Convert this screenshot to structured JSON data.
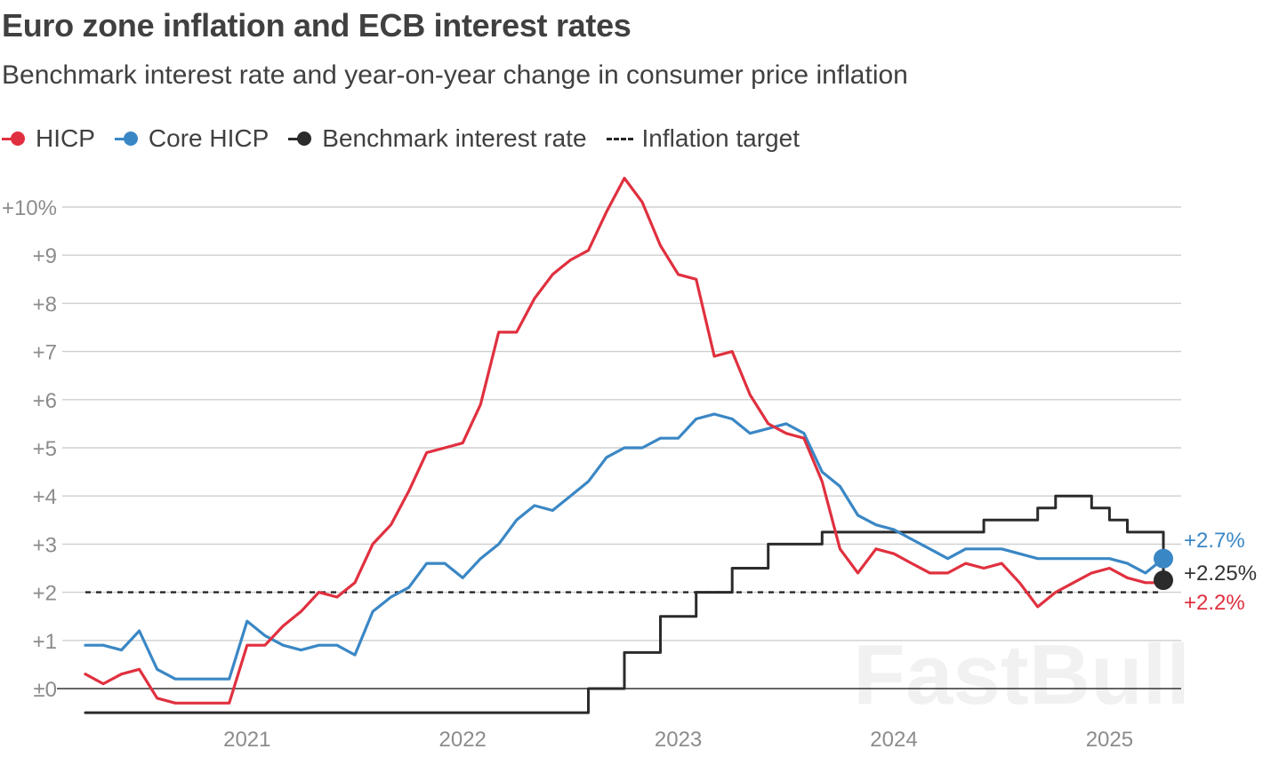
{
  "header": {
    "title": "Euro zone inflation and ECB interest rates",
    "subtitle": "Benchmark interest rate and year-on-year change in consumer price inflation"
  },
  "legend": [
    {
      "label": "HICP",
      "color": "#e0303f",
      "kind": "dot"
    },
    {
      "label": "Core HICP",
      "color": "#3a87c5",
      "kind": "dot"
    },
    {
      "label": "Benchmark interest rate",
      "color": "#2b2b2b",
      "kind": "dot"
    },
    {
      "label": "Inflation target",
      "color": "#262626",
      "kind": "dash"
    }
  ],
  "watermark": "FastBull",
  "chart_data": {
    "type": "line",
    "title": "Euro zone inflation and ECB interest rates",
    "subtitle": "Benchmark interest rate and year-on-year change in consumer price inflation",
    "xlabel": "",
    "ylabel": "",
    "x_range": [
      2020.25,
      2025.25
    ],
    "ylim": [
      -0.5,
      10.6
    ],
    "y_ticks": [
      {
        "value": 0,
        "label": "±0"
      },
      {
        "value": 1,
        "label": "+1"
      },
      {
        "value": 2,
        "label": "+2"
      },
      {
        "value": 3,
        "label": "+3"
      },
      {
        "value": 4,
        "label": "+4"
      },
      {
        "value": 5,
        "label": "+5"
      },
      {
        "value": 6,
        "label": "+6"
      },
      {
        "value": 7,
        "label": "+7"
      },
      {
        "value": 8,
        "label": "+8"
      },
      {
        "value": 9,
        "label": "+9"
      },
      {
        "value": 10,
        "label": "+10%"
      }
    ],
    "x_ticks": [
      {
        "value": 2021,
        "label": "2021"
      },
      {
        "value": 2022,
        "label": "2022"
      },
      {
        "value": 2023,
        "label": "2023"
      },
      {
        "value": 2024,
        "label": "2024"
      },
      {
        "value": 2025,
        "label": "2025"
      }
    ],
    "grid": true,
    "legend_position": "top-left",
    "inflation_target": {
      "label": "Inflation target",
      "value": 2.0
    },
    "series": [
      {
        "name": "HICP",
        "color": "#e0303f",
        "step": false,
        "end_label": "+2.2%",
        "x": [
          2020.25,
          2020.333,
          2020.417,
          2020.5,
          2020.583,
          2020.667,
          2020.75,
          2020.833,
          2020.917,
          2021.0,
          2021.083,
          2021.167,
          2021.25,
          2021.333,
          2021.417,
          2021.5,
          2021.583,
          2021.667,
          2021.75,
          2021.833,
          2021.917,
          2022.0,
          2022.083,
          2022.167,
          2022.25,
          2022.333,
          2022.417,
          2022.5,
          2022.583,
          2022.667,
          2022.75,
          2022.833,
          2022.917,
          2023.0,
          2023.083,
          2023.167,
          2023.25,
          2023.333,
          2023.417,
          2023.5,
          2023.583,
          2023.667,
          2023.75,
          2023.833,
          2023.917,
          2024.0,
          2024.083,
          2024.167,
          2024.25,
          2024.333,
          2024.417,
          2024.5,
          2024.583,
          2024.667,
          2024.75,
          2024.833,
          2024.917,
          2025.0,
          2025.083,
          2025.167,
          2025.25
        ],
        "values": [
          0.3,
          0.1,
          0.3,
          0.4,
          -0.2,
          -0.3,
          -0.3,
          -0.3,
          -0.3,
          0.9,
          0.9,
          1.3,
          1.6,
          2.0,
          1.9,
          2.2,
          3.0,
          3.4,
          4.1,
          4.9,
          5.0,
          5.1,
          5.9,
          7.4,
          7.4,
          8.1,
          8.6,
          8.9,
          9.1,
          9.9,
          10.6,
          10.1,
          9.2,
          8.6,
          8.5,
          6.9,
          7.0,
          6.1,
          5.5,
          5.3,
          5.2,
          4.3,
          2.9,
          2.4,
          2.9,
          2.8,
          2.6,
          2.4,
          2.4,
          2.6,
          2.5,
          2.6,
          2.2,
          1.7,
          2.0,
          2.2,
          2.4,
          2.5,
          2.3,
          2.2,
          2.2
        ]
      },
      {
        "name": "Core HICP",
        "color": "#3a87c5",
        "step": false,
        "end_label": "+2.7%",
        "x": [
          2020.25,
          2020.333,
          2020.417,
          2020.5,
          2020.583,
          2020.667,
          2020.75,
          2020.833,
          2020.917,
          2021.0,
          2021.083,
          2021.167,
          2021.25,
          2021.333,
          2021.417,
          2021.5,
          2021.583,
          2021.667,
          2021.75,
          2021.833,
          2021.917,
          2022.0,
          2022.083,
          2022.167,
          2022.25,
          2022.333,
          2022.417,
          2022.5,
          2022.583,
          2022.667,
          2022.75,
          2022.833,
          2022.917,
          2023.0,
          2023.083,
          2023.167,
          2023.25,
          2023.333,
          2023.417,
          2023.5,
          2023.583,
          2023.667,
          2023.75,
          2023.833,
          2023.917,
          2024.0,
          2024.083,
          2024.167,
          2024.25,
          2024.333,
          2024.417,
          2024.5,
          2024.583,
          2024.667,
          2024.75,
          2024.833,
          2024.917,
          2025.0,
          2025.083,
          2025.167,
          2025.25
        ],
        "values": [
          0.9,
          0.9,
          0.8,
          1.2,
          0.4,
          0.2,
          0.2,
          0.2,
          0.2,
          1.4,
          1.1,
          0.9,
          0.8,
          0.9,
          0.9,
          0.7,
          1.6,
          1.9,
          2.1,
          2.6,
          2.6,
          2.3,
          2.7,
          3.0,
          3.5,
          3.8,
          3.7,
          4.0,
          4.3,
          4.8,
          5.0,
          5.0,
          5.2,
          5.2,
          5.6,
          5.7,
          5.6,
          5.3,
          5.4,
          5.5,
          5.3,
          4.5,
          4.2,
          3.6,
          3.4,
          3.3,
          3.1,
          2.9,
          2.7,
          2.9,
          2.9,
          2.9,
          2.8,
          2.7,
          2.7,
          2.7,
          2.7,
          2.7,
          2.6,
          2.4,
          2.7
        ]
      },
      {
        "name": "Benchmark interest rate",
        "color": "#2b2b2b",
        "step": true,
        "end_label": "+2.25%",
        "x": [
          2020.25,
          2022.583,
          2022.75,
          2022.917,
          2023.083,
          2023.25,
          2023.417,
          2023.667,
          2024.417,
          2024.667,
          2024.75,
          2024.917,
          2025.0,
          2025.083,
          2025.25
        ],
        "values": [
          -0.5,
          0.0,
          0.75,
          1.5,
          2.0,
          2.5,
          3.0,
          3.25,
          3.5,
          3.75,
          4.0,
          3.75,
          3.5,
          3.25,
          2.25
        ]
      }
    ]
  }
}
